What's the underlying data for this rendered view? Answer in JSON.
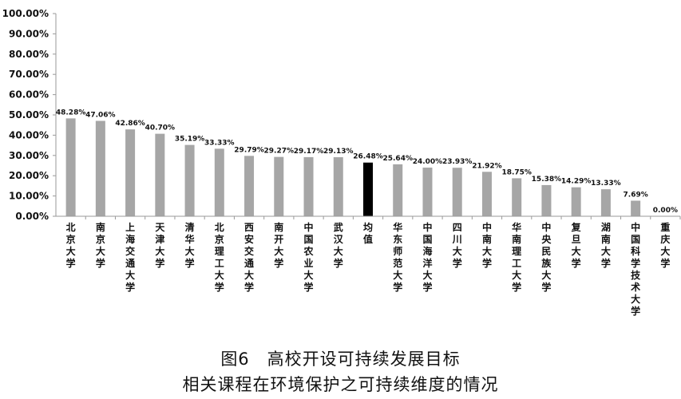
{
  "caption": {
    "line1": "图6　高校开设可持续发展目标",
    "line2": "相关课程在环境保护之可持续维度的情况"
  },
  "chart_data": {
    "type": "bar",
    "ylim": [
      0,
      100
    ],
    "yticks": [
      "0.00%",
      "10.00%",
      "20.00%",
      "30.00%",
      "40.00%",
      "50.00%",
      "60.00%",
      "70.00%",
      "80.00%",
      "90.00%",
      "100.00%"
    ],
    "grid": false,
    "legend": "none",
    "categories": [
      "北京大学",
      "南京大学",
      "上海交通大学",
      "天津大学",
      "清华大学",
      "北京理工大学",
      "西安交通大学",
      "南开大学",
      "中国农业大学",
      "武汉大学",
      "均值",
      "华东师范大学",
      "中国海洋大学",
      "四川大学",
      "中南大学",
      "华南理工大学",
      "中央民族大学",
      "复旦大学",
      "湖南大学",
      "中国科学技术大学",
      "重庆大学"
    ],
    "values": [
      48.28,
      47.06,
      42.86,
      40.7,
      35.19,
      33.33,
      29.79,
      29.27,
      29.17,
      29.13,
      26.48,
      25.64,
      24.0,
      23.93,
      21.92,
      18.75,
      15.38,
      14.29,
      13.33,
      7.69,
      0.0
    ],
    "data_labels": [
      "48.28%",
      "47.06%",
      "42.86%",
      "40.70%",
      "35.19%",
      "33.33%",
      "29.79%",
      "29.27%",
      "29.17%",
      "29.13%",
      "26.48%",
      "25.64%",
      "24.00%",
      "23.93%",
      "21.92%",
      "18.75%",
      "15.38%",
      "14.29%",
      "13.33%",
      "7.69%",
      "0.00%"
    ],
    "colors": {
      "bar": "#a6a6a6",
      "highlight": "#000000",
      "axis": "#9a9a9a"
    },
    "highlight_category": "均值"
  }
}
